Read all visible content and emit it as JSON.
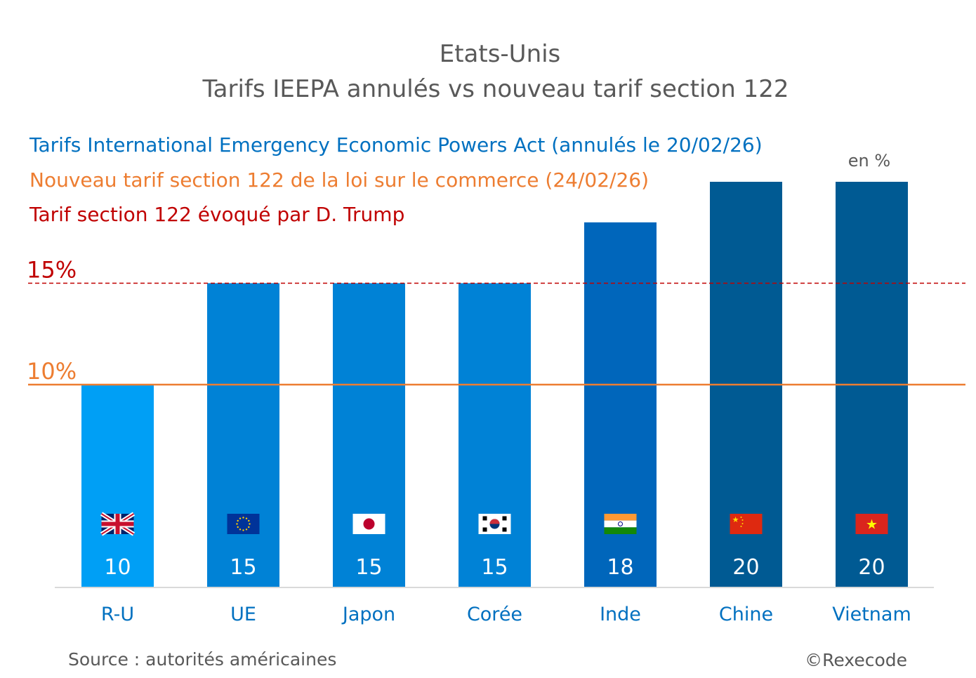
{
  "chart_data": {
    "type": "bar",
    "title": "Etats-Unis",
    "subtitle": "Tarifs IEEPA annulés vs nouveau tarif section 122",
    "unit_note": "en %",
    "categories": [
      "R-U",
      "UE",
      "Japon",
      "Corée",
      "Inde",
      "Chine",
      "Vietnam"
    ],
    "flags": [
      "uk-flag-icon",
      "eu-flag-icon",
      "japan-flag-icon",
      "korea-flag-icon",
      "india-flag-icon",
      "china-flag-icon",
      "vietnam-flag-icon"
    ],
    "series": [
      {
        "name": "Tarifs International Emergency Economic Powers Act (annulés le 20/02/26)",
        "values": [
          10,
          15,
          15,
          15,
          18,
          20,
          20
        ],
        "colors": [
          "#009FF5",
          "#0082D6",
          "#0082D6",
          "#0082D6",
          "#0066BB",
          "#005A93",
          "#005A93"
        ],
        "legend_color": "#0070C0"
      }
    ],
    "reference_lines": [
      {
        "name": "Nouveau tarif section 122 de la loi sur le commerce (24/02/26)",
        "value": 10,
        "label": "10%",
        "color": "#ED7D31",
        "style": "solid"
      },
      {
        "name": "Tarif section 122 évoqué par D. Trump",
        "value": 15,
        "label": "15%",
        "color": "#C00000",
        "style": "dashed"
      }
    ],
    "ylim": [
      0,
      20
    ],
    "grid": false,
    "legend_placement": "top-left",
    "source": "Source : autorités américaines",
    "copyright": "©Rexecode"
  }
}
